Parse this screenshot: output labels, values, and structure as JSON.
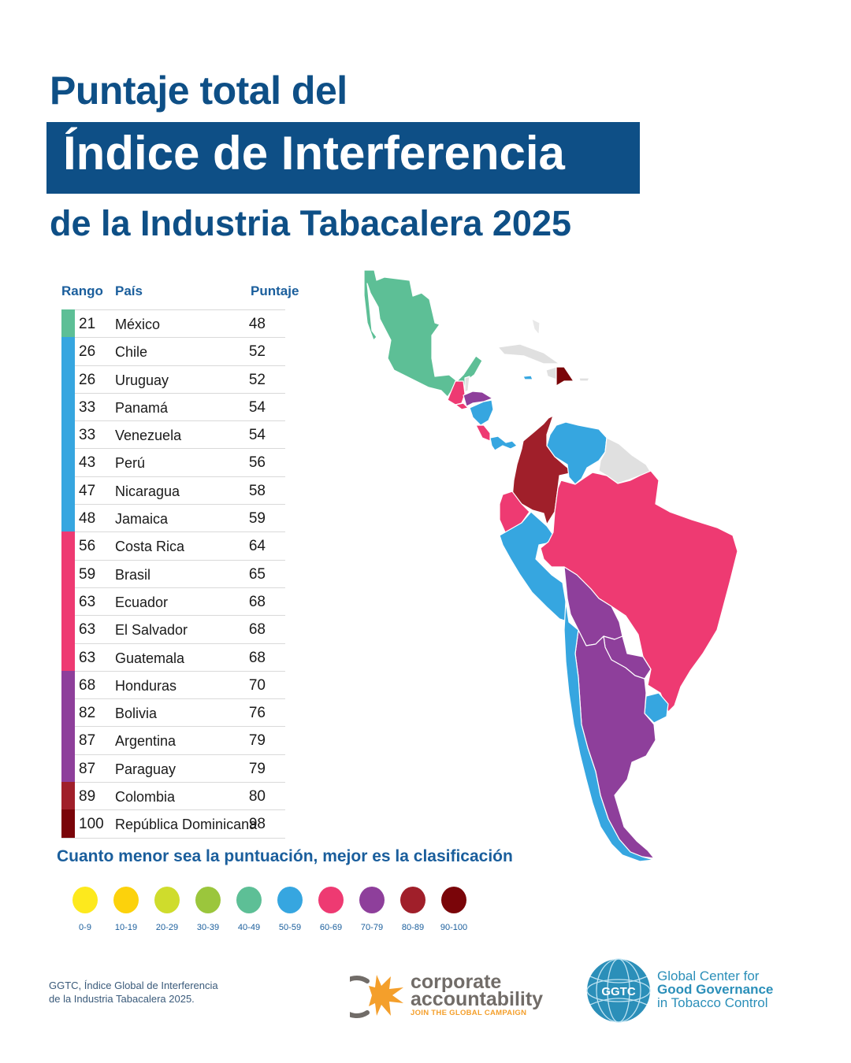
{
  "title": {
    "line1": "Puntaje total del",
    "line2": "Índice de Interferencia",
    "line3": "de la Industria Tabacalera 2025"
  },
  "table": {
    "headers": {
      "rank": "Rango",
      "country": "País",
      "score": "Puntaje"
    },
    "rows": [
      {
        "rank": "21",
        "country": "México",
        "score": "48",
        "color": "#5dbf96"
      },
      {
        "rank": "26",
        "country": "Chile",
        "score": "52",
        "color": "#36a6e0"
      },
      {
        "rank": "26",
        "country": "Uruguay",
        "score": "52",
        "color": "#36a6e0"
      },
      {
        "rank": "33",
        "country": "Panamá",
        "score": "54",
        "color": "#36a6e0"
      },
      {
        "rank": "33",
        "country": "Venezuela",
        "score": "54",
        "color": "#36a6e0"
      },
      {
        "rank": "43",
        "country": "Perú",
        "score": "56",
        "color": "#36a6e0"
      },
      {
        "rank": "47",
        "country": "Nicaragua",
        "score": "58",
        "color": "#36a6e0"
      },
      {
        "rank": "48",
        "country": "Jamaica",
        "score": "59",
        "color": "#36a6e0"
      },
      {
        "rank": "56",
        "country": "Costa Rica",
        "score": "64",
        "color": "#ee3a72"
      },
      {
        "rank": "59",
        "country": "Brasil",
        "score": "65",
        "color": "#ee3a72"
      },
      {
        "rank": "63",
        "country": "Ecuador",
        "score": "68",
        "color": "#ee3a72"
      },
      {
        "rank": "63",
        "country": "El Salvador",
        "score": "68",
        "color": "#ee3a72"
      },
      {
        "rank": "63",
        "country": "Guatemala",
        "score": "68",
        "color": "#ee3a72"
      },
      {
        "rank": "68",
        "country": "Honduras",
        "score": "70",
        "color": "#8e3f9b"
      },
      {
        "rank": "82",
        "country": "Bolivia",
        "score": "76",
        "color": "#8e3f9b"
      },
      {
        "rank": "87",
        "country": "Argentina",
        "score": "79",
        "color": "#8e3f9b"
      },
      {
        "rank": "87",
        "country": "Paraguay",
        "score": "79",
        "color": "#8e3f9b"
      },
      {
        "rank": "89",
        "country": "Colombia",
        "score": "80",
        "color": "#a01f2a"
      },
      {
        "rank": "100",
        "country": "República Dominicana",
        "score": "98",
        "color": "#7a0509"
      }
    ]
  },
  "caption": "Cuanto menor sea la puntuación, mejor es la clasificación",
  "legend": [
    {
      "label": "0-9",
      "color": "#fde91d"
    },
    {
      "label": "10-19",
      "color": "#fcd20c"
    },
    {
      "label": "20-29",
      "color": "#cfdc2c"
    },
    {
      "label": "30-39",
      "color": "#9bc63c"
    },
    {
      "label": "40-49",
      "color": "#5dbf96"
    },
    {
      "label": "50-59",
      "color": "#36a6e0"
    },
    {
      "label": "60-69",
      "color": "#ee3a72"
    },
    {
      "label": "70-79",
      "color": "#8e3f9b"
    },
    {
      "label": "80-89",
      "color": "#a01f2a"
    },
    {
      "label": "90-100",
      "color": "#7a0509"
    }
  ],
  "footer": {
    "source_line1": "GGTC, Índice Global de Interferencia",
    "source_line2": "de la Industria Tabacalera 2025.",
    "ca_logo": {
      "line1": "corporate",
      "line2": "accountability",
      "tagline": "JOIN THE GLOBAL CAMPAIGN"
    },
    "ggtc_logo": {
      "badge": "GGTC",
      "line1": "Global Center for",
      "line2": "Good Governance",
      "line3": "in Tobacco Control"
    }
  },
  "chart_data": {
    "type": "table",
    "title": "Puntaje total del Índice de Interferencia de la Industria Tabacalera 2025",
    "columns": [
      "Rango",
      "País",
      "Puntaje"
    ],
    "categories": [
      "México",
      "Chile",
      "Uruguay",
      "Panamá",
      "Venezuela",
      "Perú",
      "Nicaragua",
      "Jamaica",
      "Costa Rica",
      "Brasil",
      "Ecuador",
      "El Salvador",
      "Guatemala",
      "Honduras",
      "Bolivia",
      "Argentina",
      "Paraguay",
      "Colombia",
      "República Dominicana"
    ],
    "series": [
      {
        "name": "Rango",
        "values": [
          21,
          26,
          26,
          33,
          33,
          43,
          47,
          48,
          56,
          59,
          63,
          63,
          63,
          68,
          82,
          87,
          87,
          89,
          100
        ]
      },
      {
        "name": "Puntaje",
        "values": [
          48,
          52,
          52,
          54,
          54,
          56,
          58,
          59,
          64,
          65,
          68,
          68,
          68,
          70,
          76,
          79,
          79,
          80,
          98
        ]
      }
    ],
    "legend_bins": [
      "0-9",
      "10-19",
      "20-29",
      "30-39",
      "40-49",
      "50-59",
      "60-69",
      "70-79",
      "80-89",
      "90-100"
    ],
    "annotation": "Cuanto menor sea la puntuación, mejor es la clasificación",
    "map": "Choropleth of Latin America colored by score bin"
  }
}
